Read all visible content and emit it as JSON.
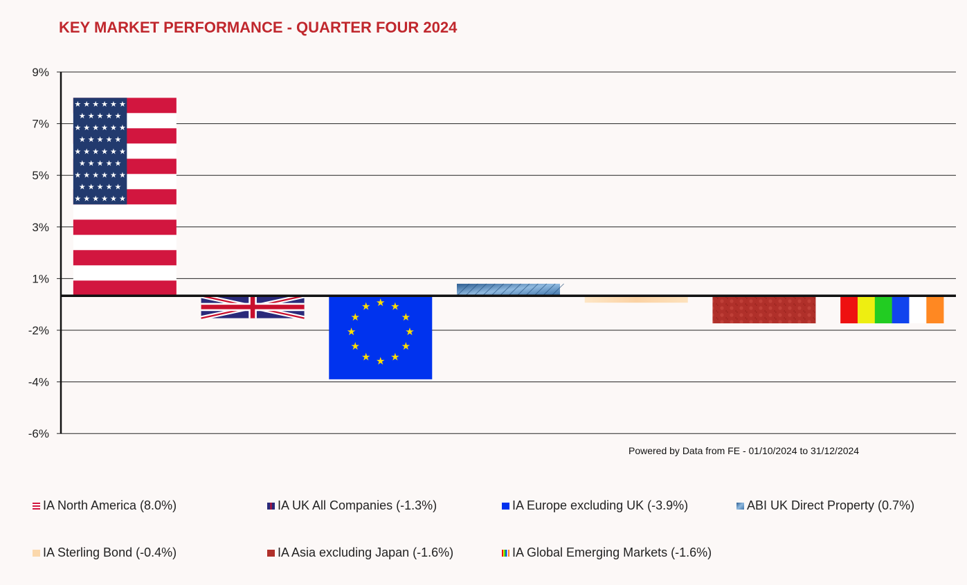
{
  "chart_data": {
    "type": "bar",
    "title": "KEY MARKET PERFORMANCE - QUARTER FOUR 2024",
    "source_note": "Powered by Data from FE - 01/10/2024 to 31/12/2024",
    "ylim": [
      -6,
      9
    ],
    "y_ticks": [
      9,
      7,
      5,
      3,
      1,
      -2,
      -4,
      -6
    ],
    "y_tick_labels": [
      "9%",
      "7%",
      "5%",
      "3%",
      "1%",
      "-2%",
      "-4%",
      "-6%"
    ],
    "grid": true,
    "legend_position": "bottom",
    "categories": [
      "IA North America",
      "IA UK All Companies",
      "IA Europe excluding UK",
      "ABI UK Direct Property",
      "IA Sterling Bond",
      "IA Asia excluding Japan",
      "IA Global Emerging Markets"
    ],
    "values": [
      8.0,
      -1.3,
      -3.9,
      0.7,
      -0.4,
      -1.6,
      -1.6
    ],
    "legend_labels": [
      "IA North America (8.0%)",
      "IA UK All Companies (-1.3%)",
      "IA Europe excluding UK (-3.9%)",
      "ABI UK Direct Property (0.7%)",
      "IA Sterling Bond (-0.4%)",
      "IA Asia excluding Japan (-1.6%)",
      "IA Global Emerging Markets (-1.6%)"
    ],
    "fills": [
      "us-flag",
      "uk-flag",
      "eu-flag",
      "glass-building",
      "peach-gradient",
      "red-pattern",
      "rainbow-stripes"
    ],
    "colors": {
      "title": "#c0272d",
      "us_red": "#d2163f",
      "us_blue": "#223a6e",
      "uk_blue": "#2a2a7a",
      "uk_red": "#c8102e",
      "eu_blue": "#0033ee",
      "eu_gold": "#ffdd00",
      "property_blue": "#4a7fb0",
      "bond_peach": "#fbd8ac",
      "asia_red": "#b0302a",
      "background": "#fcf8f7"
    }
  }
}
